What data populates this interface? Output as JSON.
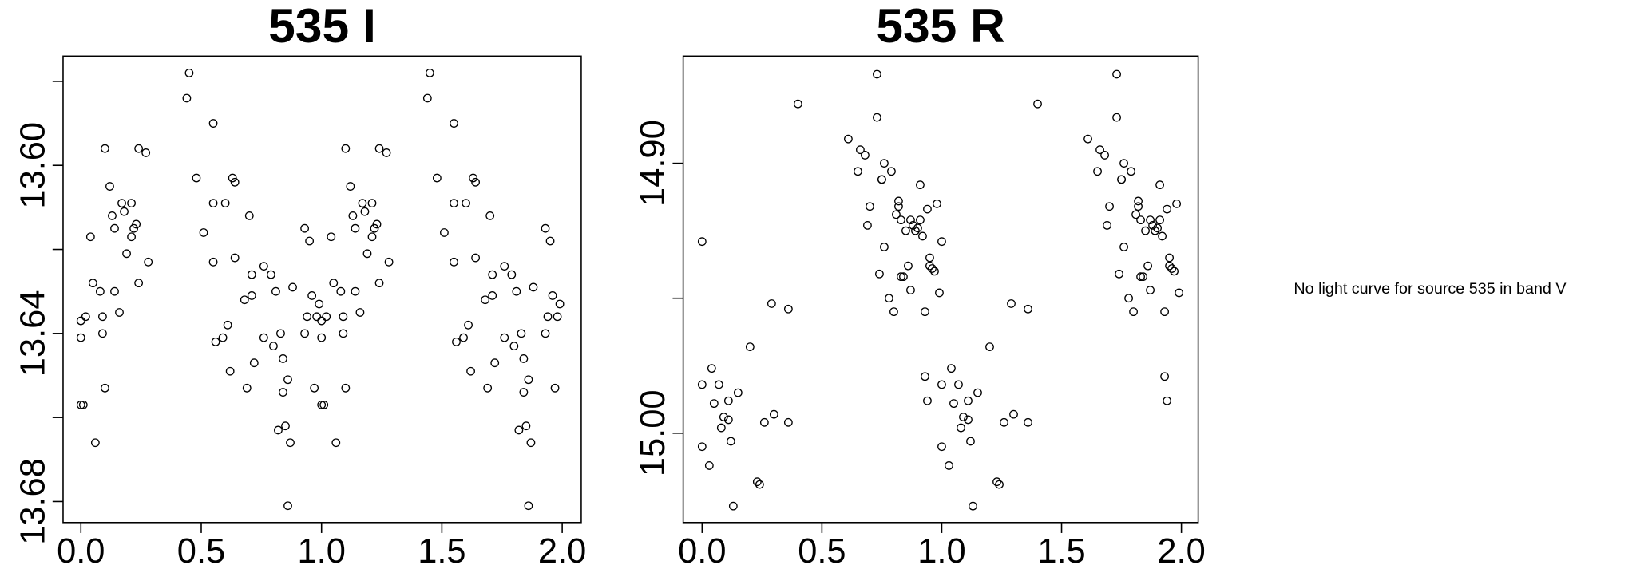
{
  "chart_data": [
    {
      "type": "scatter",
      "title": "535 I",
      "x": [
        0.0,
        0.0,
        0.02,
        0.0,
        0.01,
        0.04,
        0.05,
        0.06,
        0.08,
        0.09,
        0.09,
        0.1,
        0.1,
        0.12,
        0.13,
        0.14,
        0.14,
        0.16,
        0.17,
        0.18,
        0.19,
        0.21,
        0.21,
        0.22,
        0.23,
        0.24,
        0.24,
        0.27,
        0.28,
        0.44,
        0.45,
        0.48,
        0.51,
        0.55,
        0.55,
        0.55,
        0.56,
        0.59,
        0.6,
        0.61,
        0.62,
        0.63,
        0.64,
        0.64,
        0.68,
        0.69,
        0.7,
        0.71,
        0.71,
        0.72,
        0.76,
        0.76,
        0.79,
        0.8,
        0.81,
        0.82,
        0.83,
        0.84,
        0.84,
        0.85,
        0.86,
        0.87,
        0.86,
        0.88,
        0.93,
        0.93,
        0.94,
        0.95,
        0.96,
        0.97,
        0.98,
        0.99,
        1.0,
        1.0,
        1.02,
        1.0,
        1.01,
        1.04,
        1.05,
        1.06,
        1.08,
        1.09,
        1.09,
        1.1,
        1.1,
        1.12,
        1.13,
        1.14,
        1.14,
        1.16,
        1.17,
        1.18,
        1.19,
        1.21,
        1.21,
        1.22,
        1.23,
        1.24,
        1.24,
        1.27,
        1.28,
        1.44,
        1.45,
        1.48,
        1.51,
        1.55,
        1.55,
        1.55,
        1.56,
        1.59,
        1.6,
        1.61,
        1.62,
        1.63,
        1.64,
        1.64,
        1.68,
        1.69,
        1.7,
        1.71,
        1.71,
        1.72,
        1.76,
        1.76,
        1.79,
        1.8,
        1.81,
        1.82,
        1.83,
        1.84,
        1.84,
        1.85,
        1.86,
        1.87,
        1.86,
        1.88,
        1.93,
        1.93,
        1.94,
        1.95,
        1.96,
        1.97,
        1.98,
        1.99
      ],
      "y": [
        13.637,
        13.641,
        13.636,
        13.657,
        13.657,
        13.617,
        13.628,
        13.666,
        13.63,
        13.636,
        13.64,
        13.596,
        13.653,
        13.605,
        13.612,
        13.615,
        13.63,
        13.635,
        13.609,
        13.611,
        13.621,
        13.609,
        13.617,
        13.615,
        13.614,
        13.628,
        13.596,
        13.597,
        13.623,
        13.584,
        13.578,
        13.603,
        13.616,
        13.59,
        13.609,
        13.623,
        13.642,
        13.641,
        13.609,
        13.638,
        13.649,
        13.603,
        13.604,
        13.622,
        13.632,
        13.653,
        13.612,
        13.626,
        13.631,
        13.647,
        13.641,
        13.624,
        13.626,
        13.643,
        13.63,
        13.663,
        13.64,
        13.646,
        13.654,
        13.662,
        13.651,
        13.666,
        13.681,
        13.629,
        13.615,
        13.64,
        13.636,
        13.618,
        13.631,
        13.653,
        13.636,
        13.633,
        13.637,
        13.641,
        13.636,
        13.657,
        13.657,
        13.617,
        13.628,
        13.666,
        13.63,
        13.636,
        13.64,
        13.596,
        13.653,
        13.605,
        13.612,
        13.615,
        13.63,
        13.635,
        13.609,
        13.611,
        13.621,
        13.609,
        13.617,
        13.615,
        13.614,
        13.628,
        13.596,
        13.597,
        13.623,
        13.584,
        13.578,
        13.603,
        13.616,
        13.59,
        13.609,
        13.623,
        13.642,
        13.641,
        13.609,
        13.638,
        13.649,
        13.603,
        13.604,
        13.622,
        13.632,
        13.653,
        13.612,
        13.626,
        13.631,
        13.647,
        13.641,
        13.624,
        13.626,
        13.643,
        13.63,
        13.663,
        13.64,
        13.646,
        13.654,
        13.662,
        13.651,
        13.666,
        13.681,
        13.629,
        13.615,
        13.64,
        13.636,
        13.618,
        13.631,
        13.653,
        13.636,
        13.633
      ],
      "xlim": [
        -0.074,
        2.079
      ],
      "ylim": [
        13.574,
        13.685
      ],
      "y_inverted": true,
      "xticks": [
        {
          "value": 0,
          "label": "0.0"
        },
        {
          "value": 0.5,
          "label": "0.5"
        },
        {
          "value": 1,
          "label": "1.0"
        },
        {
          "value": 1.5,
          "label": "1.5"
        },
        {
          "value": 2,
          "label": "2.0"
        }
      ],
      "yticks": [
        {
          "value": 13.6,
          "label": "13.60"
        },
        {
          "value": 13.64,
          "label": "13.64"
        },
        {
          "value": 13.68,
          "label": "13.68"
        }
      ],
      "yticks_minor": [
        13.58,
        13.62,
        13.66
      ],
      "marker": "open-circle",
      "color": "#000000"
    },
    {
      "type": "scatter",
      "title": "535 R",
      "x": [
        0.0,
        0.0,
        0.0,
        0.03,
        0.04,
        0.05,
        0.07,
        0.08,
        0.09,
        0.11,
        0.11,
        0.12,
        0.13,
        0.15,
        0.2,
        0.23,
        0.24,
        0.26,
        0.29,
        0.3,
        0.36,
        0.36,
        0.4,
        0.61,
        0.65,
        0.66,
        0.68,
        0.69,
        0.7,
        0.73,
        0.73,
        0.74,
        0.75,
        0.75,
        0.76,
        0.76,
        0.78,
        0.79,
        0.8,
        0.81,
        0.82,
        0.82,
        0.83,
        0.83,
        0.84,
        0.85,
        0.86,
        0.87,
        0.87,
        0.88,
        0.89,
        0.9,
        0.91,
        0.91,
        0.92,
        0.93,
        0.93,
        0.94,
        0.94,
        0.95,
        0.95,
        0.96,
        0.97,
        0.98,
        0.99,
        1.0,
        1.0,
        1.0,
        1.03,
        1.04,
        1.05,
        1.07,
        1.08,
        1.09,
        1.11,
        1.11,
        1.12,
        1.13,
        1.15,
        1.2,
        1.23,
        1.24,
        1.26,
        1.29,
        1.3,
        1.36,
        1.36,
        1.4,
        1.61,
        1.65,
        1.66,
        1.68,
        1.69,
        1.7,
        1.73,
        1.73,
        1.74,
        1.75,
        1.75,
        1.76,
        1.76,
        1.78,
        1.79,
        1.8,
        1.81,
        1.82,
        1.82,
        1.83,
        1.83,
        1.84,
        1.85,
        1.86,
        1.87,
        1.87,
        1.88,
        1.89,
        1.9,
        1.91,
        1.91,
        1.92,
        1.93,
        1.93,
        1.94,
        1.94,
        1.95,
        1.95,
        1.96,
        1.97,
        1.98,
        1.99
      ],
      "y": [
        14.929,
        15.005,
        14.982,
        15.012,
        14.976,
        14.989,
        14.982,
        14.998,
        14.994,
        14.988,
        14.995,
        15.003,
        15.027,
        14.985,
        14.968,
        15.018,
        15.019,
        14.996,
        14.952,
        14.993,
        14.954,
        14.996,
        14.878,
        14.891,
        14.903,
        14.895,
        14.897,
        14.923,
        14.916,
        14.883,
        14.867,
        14.941,
        14.906,
        14.906,
        14.931,
        14.9,
        14.95,
        14.903,
        14.955,
        14.919,
        14.914,
        14.916,
        14.921,
        14.942,
        14.942,
        14.925,
        14.938,
        14.921,
        14.947,
        14.923,
        14.925,
        14.924,
        14.921,
        14.908,
        14.927,
        14.955,
        14.979,
        14.917,
        14.988,
        14.938,
        14.935,
        14.939,
        14.94,
        14.915,
        14.948,
        14.929,
        15.005,
        14.982,
        15.012,
        14.976,
        14.989,
        14.982,
        14.998,
        14.994,
        14.988,
        14.995,
        15.003,
        15.027,
        14.985,
        14.968,
        15.018,
        15.019,
        14.996,
        14.952,
        14.993,
        14.954,
        14.996,
        14.878,
        14.891,
        14.903,
        14.895,
        14.897,
        14.923,
        14.916,
        14.883,
        14.867,
        14.941,
        14.906,
        14.906,
        14.931,
        14.9,
        14.95,
        14.903,
        14.955,
        14.919,
        14.914,
        14.916,
        14.921,
        14.942,
        14.942,
        14.925,
        14.938,
        14.921,
        14.947,
        14.923,
        14.925,
        14.924,
        14.921,
        14.908,
        14.927,
        14.955,
        14.979,
        14.917,
        14.988,
        14.938,
        14.935,
        14.939,
        14.94,
        14.915,
        14.948
      ],
      "xlim": [
        -0.079,
        2.07
      ],
      "ylim": [
        14.8603,
        15.0331
      ],
      "y_inverted": true,
      "xticks": [
        {
          "value": 0,
          "label": "0.0"
        },
        {
          "value": 0.5,
          "label": "0.5"
        },
        {
          "value": 1,
          "label": "1.0"
        },
        {
          "value": 1.5,
          "label": "1.5"
        },
        {
          "value": 2,
          "label": "2.0"
        }
      ],
      "yticks": [
        {
          "value": 14.9,
          "label": "14.90"
        },
        {
          "value": 15.0,
          "label": "15.00"
        }
      ],
      "yticks_minor": [
        14.95
      ],
      "marker": "open-circle",
      "color": "#000000"
    }
  ],
  "message": "No light curve for source 535 in band V"
}
